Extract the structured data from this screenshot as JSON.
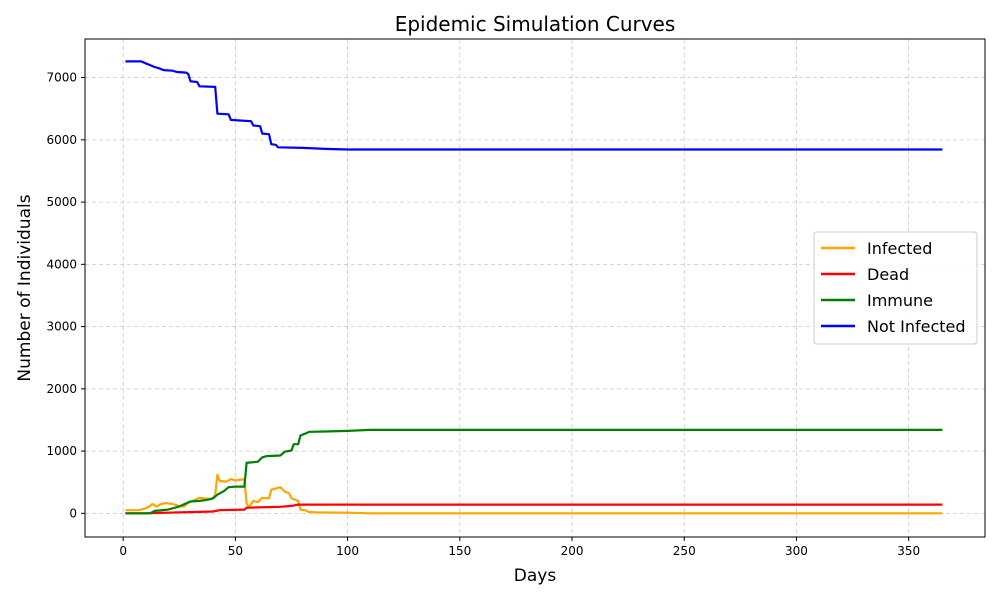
{
  "chart_data": {
    "type": "line",
    "title": "Epidemic Simulation Curves",
    "xlabel": "Days",
    "ylabel": "Number of Individuals",
    "xlim": [
      -17,
      384
    ],
    "ylim": [
      -380,
      7620
    ],
    "xticks": [
      0,
      50,
      100,
      150,
      200,
      250,
      300,
      350
    ],
    "yticks": [
      0,
      1000,
      2000,
      3000,
      4000,
      5000,
      6000,
      7000
    ],
    "grid": true,
    "legend_position": "center-right",
    "series": [
      {
        "name": "Infected",
        "color": "#FFA500",
        "points": [
          [
            1,
            50
          ],
          [
            7,
            50
          ],
          [
            10,
            80
          ],
          [
            12,
            120
          ],
          [
            13,
            150
          ],
          [
            15,
            110
          ],
          [
            17,
            150
          ],
          [
            19,
            165
          ],
          [
            22,
            150
          ],
          [
            25,
            120
          ],
          [
            27,
            110
          ],
          [
            29,
            170
          ],
          [
            31,
            200
          ],
          [
            34,
            250
          ],
          [
            36,
            240
          ],
          [
            38,
            230
          ],
          [
            40,
            240
          ],
          [
            41,
            300
          ],
          [
            42,
            620
          ],
          [
            43,
            520
          ],
          [
            46,
            510
          ],
          [
            48,
            550
          ],
          [
            50,
            530
          ],
          [
            54,
            550
          ],
          [
            55,
            160
          ],
          [
            56,
            100
          ],
          [
            58,
            200
          ],
          [
            60,
            180
          ],
          [
            62,
            250
          ],
          [
            65,
            240
          ],
          [
            66,
            380
          ],
          [
            68,
            400
          ],
          [
            70,
            420
          ],
          [
            72,
            350
          ],
          [
            74,
            320
          ],
          [
            75,
            240
          ],
          [
            78,
            200
          ],
          [
            79,
            60
          ],
          [
            81,
            50
          ],
          [
            83,
            20
          ],
          [
            86,
            15
          ],
          [
            100,
            10
          ],
          [
            110,
            0
          ],
          [
            365,
            0
          ]
        ]
      },
      {
        "name": "Dead",
        "color": "#FF0000",
        "points": [
          [
            1,
            0
          ],
          [
            10,
            0
          ],
          [
            14,
            5
          ],
          [
            20,
            10
          ],
          [
            25,
            15
          ],
          [
            30,
            20
          ],
          [
            40,
            30
          ],
          [
            43,
            50
          ],
          [
            54,
            60
          ],
          [
            55,
            90
          ],
          [
            60,
            95
          ],
          [
            70,
            105
          ],
          [
            75,
            120
          ],
          [
            78,
            140
          ],
          [
            365,
            140
          ]
        ]
      },
      {
        "name": "Immune",
        "color": "#008000",
        "points": [
          [
            1,
            0
          ],
          [
            12,
            0
          ],
          [
            14,
            40
          ],
          [
            20,
            60
          ],
          [
            25,
            110
          ],
          [
            28,
            160
          ],
          [
            30,
            190
          ],
          [
            34,
            200
          ],
          [
            36,
            210
          ],
          [
            38,
            220
          ],
          [
            40,
            240
          ],
          [
            42,
            300
          ],
          [
            45,
            360
          ],
          [
            47,
            420
          ],
          [
            50,
            430
          ],
          [
            54,
            430
          ],
          [
            55,
            810
          ],
          [
            60,
            830
          ],
          [
            62,
            900
          ],
          [
            64,
            920
          ],
          [
            70,
            930
          ],
          [
            72,
            990
          ],
          [
            75,
            1010
          ],
          [
            76,
            1110
          ],
          [
            78,
            1110
          ],
          [
            79,
            1250
          ],
          [
            81,
            1280
          ],
          [
            83,
            1310
          ],
          [
            90,
            1315
          ],
          [
            100,
            1325
          ],
          [
            110,
            1340
          ],
          [
            365,
            1340
          ]
        ]
      },
      {
        "name": "Not Infected",
        "color": "#0000FF",
        "points": [
          [
            1,
            7260
          ],
          [
            8,
            7260
          ],
          [
            10,
            7230
          ],
          [
            12,
            7200
          ],
          [
            14,
            7170
          ],
          [
            16,
            7150
          ],
          [
            18,
            7120
          ],
          [
            22,
            7110
          ],
          [
            24,
            7090
          ],
          [
            28,
            7080
          ],
          [
            29,
            7060
          ],
          [
            30,
            6940
          ],
          [
            33,
            6930
          ],
          [
            34,
            6860
          ],
          [
            41,
            6850
          ],
          [
            42,
            6420
          ],
          [
            47,
            6410
          ],
          [
            48,
            6320
          ],
          [
            52,
            6310
          ],
          [
            57,
            6300
          ],
          [
            58,
            6230
          ],
          [
            61,
            6220
          ],
          [
            62,
            6100
          ],
          [
            65,
            6090
          ],
          [
            66,
            5930
          ],
          [
            68,
            5920
          ],
          [
            69,
            5880
          ],
          [
            80,
            5870
          ],
          [
            90,
            5855
          ],
          [
            100,
            5845
          ],
          [
            365,
            5845
          ]
        ]
      }
    ]
  }
}
